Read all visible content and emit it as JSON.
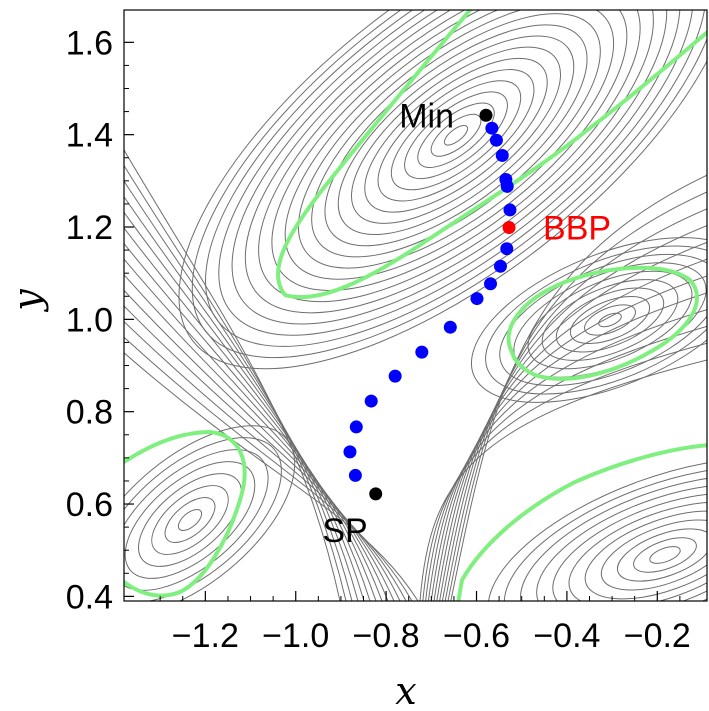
{
  "chart_data": {
    "type": "scatter",
    "title": "",
    "xlabel": "x",
    "ylabel": "y",
    "xlim": [
      -1.38,
      -0.09
    ],
    "ylim": [
      0.39,
      1.67
    ],
    "x_ticks": [
      {
        "value": -1.2,
        "label": "−1.2"
      },
      {
        "value": -1.0,
        "label": "−1.0"
      },
      {
        "value": -0.8,
        "label": "−0.8"
      },
      {
        "value": -0.6,
        "label": "−0.6"
      },
      {
        "value": -0.4,
        "label": "−0.4"
      },
      {
        "value": -0.2,
        "label": "−0.2"
      }
    ],
    "y_ticks": [
      {
        "value": 0.4,
        "label": "0.4"
      },
      {
        "value": 0.6,
        "label": "0.6"
      },
      {
        "value": 0.8,
        "label": "0.8"
      },
      {
        "value": 1.0,
        "label": "1.0"
      },
      {
        "value": 1.2,
        "label": "1.2"
      },
      {
        "value": 1.4,
        "label": "1.4"
      },
      {
        "value": 1.6,
        "label": "1.6"
      }
    ],
    "contour_color": "#6e6e6e",
    "green_curve_color": "#7ff07f",
    "path_color": "#0000ff",
    "path_points": [
      {
        "x": -0.868,
        "y": 0.662
      },
      {
        "x": -0.88,
        "y": 0.713
      },
      {
        "x": -0.866,
        "y": 0.767
      },
      {
        "x": -0.833,
        "y": 0.823
      },
      {
        "x": -0.78,
        "y": 0.877
      },
      {
        "x": -0.721,
        "y": 0.929
      },
      {
        "x": -0.658,
        "y": 0.983
      },
      {
        "x": -0.599,
        "y": 1.045
      },
      {
        "x": -0.569,
        "y": 1.077
      },
      {
        "x": -0.547,
        "y": 1.115
      },
      {
        "x": -0.533,
        "y": 1.153
      },
      {
        "x": -0.526,
        "y": 1.237
      },
      {
        "x": -0.532,
        "y": 1.288
      },
      {
        "x": -0.535,
        "y": 1.303
      },
      {
        "x": -0.543,
        "y": 1.355
      },
      {
        "x": -0.556,
        "y": 1.388
      },
      {
        "x": -0.566,
        "y": 1.414
      }
    ],
    "special_points": [
      {
        "name": "Min",
        "x": -0.579,
        "y": 1.442,
        "color": "#000000",
        "label_color": "#000000"
      },
      {
        "name": "BBP",
        "x": -0.528,
        "y": 1.199,
        "color": "#ff0000",
        "label_color": "#ff0000"
      },
      {
        "name": "SP",
        "x": -0.823,
        "y": 0.622,
        "color": "#000000",
        "label_color": "#000000"
      }
    ]
  }
}
